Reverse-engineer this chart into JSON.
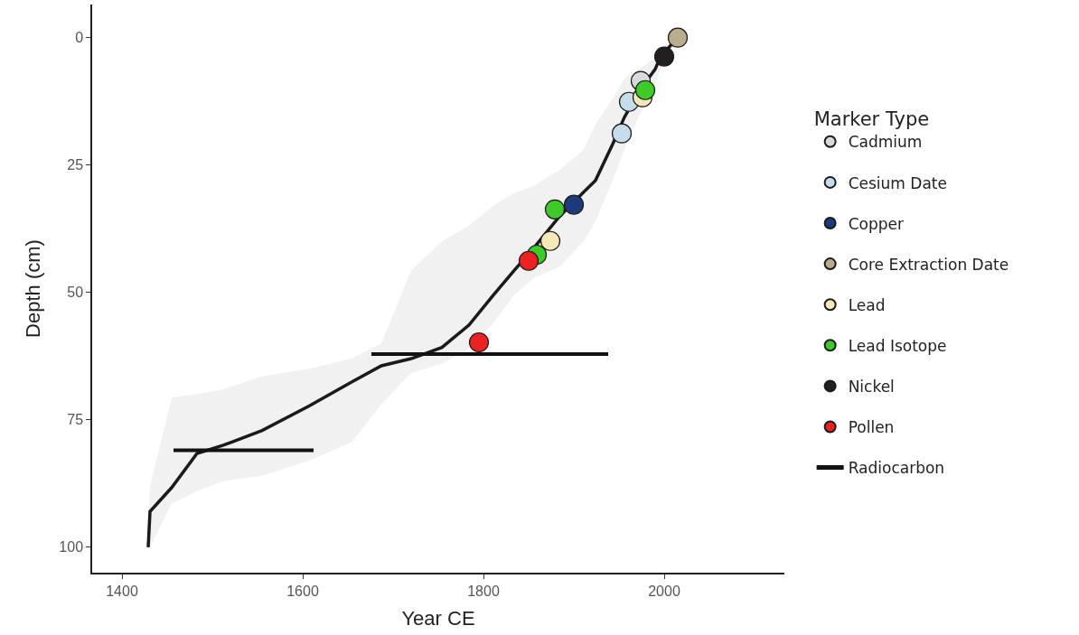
{
  "chart_data": {
    "type": "scatter",
    "xlabel": "Year CE",
    "ylabel": "Depth (cm)",
    "legend_title": "Marker Type",
    "legend": "right",
    "marker": "circle",
    "xlim": [
      1367,
      2133
    ],
    "xticks": [
      1400,
      1600,
      1800,
      2000
    ],
    "ylim": [
      105,
      -6.5
    ],
    "yticks": [
      0,
      25,
      50,
      75,
      100
    ],
    "series": [
      {
        "type": "line",
        "color": "#1a1a1a",
        "marker": "none",
        "x": [
          1429,
          1431,
          1455,
          1483,
          1512,
          1555,
          1607,
          1654,
          1687,
          1720,
          1754,
          1784,
          1811,
          1834,
          1857,
          1884,
          1911,
          1924,
          1943,
          1956,
          1973,
          1990,
          1996,
          2015
        ],
        "values": [
          100,
          93,
          88.3,
          81.6,
          80,
          77.1,
          72.3,
          67.6,
          64.4,
          63,
          60.8,
          56.4,
          50.5,
          45.7,
          41,
          35.1,
          30.3,
          28,
          20.9,
          15.6,
          10.3,
          6.2,
          3.7,
          0
        ],
        "lower": [
          95,
          88,
          70.6,
          70,
          69,
          66.5,
          65,
          63,
          60,
          45.7,
          40,
          36.9,
          33,
          30.5,
          29,
          26,
          22,
          17,
          12,
          8,
          6,
          4,
          2,
          0
        ],
        "upper": [
          100,
          100,
          91.4,
          89,
          87,
          86,
          83,
          79.4,
          72,
          65.8,
          64,
          61,
          56,
          50.5,
          47,
          45,
          40,
          36,
          28,
          22,
          15,
          9,
          6,
          0
        ]
      },
      {
        "name": "Cadmium",
        "color": "#d9d9dc",
        "x": [
          1974
        ],
        "values": [
          8.5
        ]
      },
      {
        "name": "Cesium Date",
        "color": "#c6dcea",
        "x": [
          1961,
          1953
        ],
        "values": [
          12.6,
          18.8
        ]
      },
      {
        "name": "Copper",
        "color": "#1f3a7a",
        "x": [
          1900
        ],
        "values": [
          32.8
        ]
      },
      {
        "name": "Core Extraction Date",
        "color": "#b9ad8d",
        "x": [
          2015
        ],
        "values": [
          0
        ]
      },
      {
        "name": "Lead",
        "color": "#f5e8b8",
        "x": [
          1976,
          1874
        ],
        "values": [
          11.7,
          39.9
        ]
      },
      {
        "name": "Lead Isotope",
        "color": "#3ecb2a",
        "x": [
          1979,
          1879,
          1859
        ],
        "values": [
          10.3,
          33.7,
          42.6
        ]
      },
      {
        "name": "Nickel",
        "color": "#231f20",
        "x": [
          2000
        ],
        "values": [
          3.7
        ]
      },
      {
        "name": "Pollen",
        "color": "#ec2222",
        "x": [
          1850,
          1795
        ],
        "values": [
          43.8,
          59.8
        ]
      },
      {
        "name": "Radiocarbon",
        "type": "line",
        "marker": "none",
        "color": "#111111",
        "x": [
          1676,
          1938,
          null,
          1457,
          1612
        ],
        "values": [
          62.1,
          62.1,
          null,
          81,
          81
        ]
      }
    ]
  }
}
